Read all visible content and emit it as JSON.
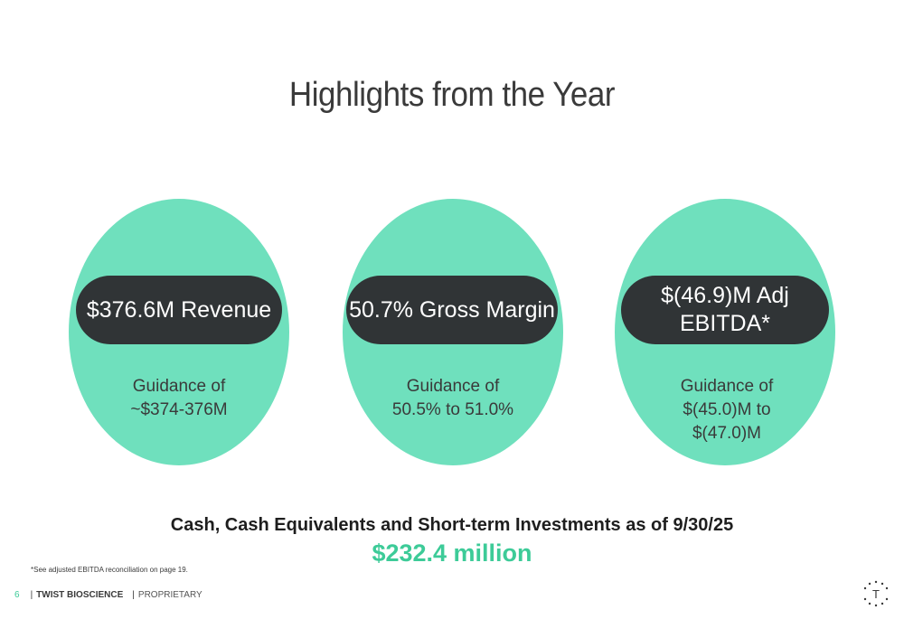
{
  "slide": {
    "title": "Highlights from the Year",
    "highlights": [
      {
        "metric": "$376.6M Revenue",
        "guidance": "Guidance of\n~$374-376M"
      },
      {
        "metric": "50.7% Gross Margin",
        "guidance": "Guidance of\n50.5% to 51.0%"
      },
      {
        "metric": "$(46.9)M Adj\nEBITDA*",
        "guidance": "Guidance of\n$(45.0)M to\n$(47.0)M"
      }
    ],
    "cash": {
      "label": "Cash, Cash Equivalents and Short-term Investments as of 9/30/25",
      "value": "$232.4 million"
    },
    "footnote": "*See adjusted EBITDA reconciliation on page 19."
  },
  "footer": {
    "page_number": "6",
    "company": "TWIST BIOSCIENCE",
    "label": "PROPRIETARY",
    "logo_letter": "T"
  },
  "colors": {
    "accent_green": "#6fe0bd",
    "value_green": "#3dcb98",
    "pill_dark": "#303436"
  },
  "icons": {
    "logo": "twist-logo-icon"
  }
}
